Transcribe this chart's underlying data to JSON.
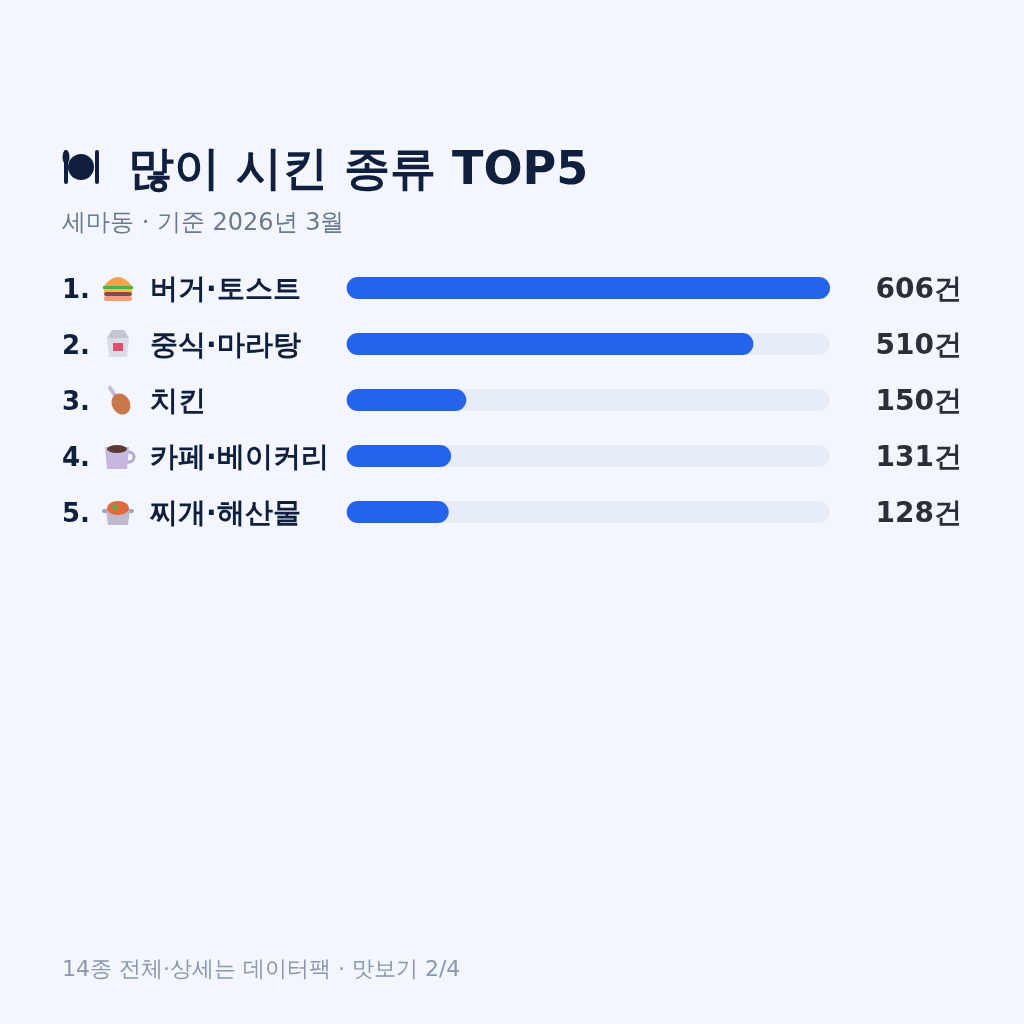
{
  "chart_data": {
    "type": "bar",
    "orientation": "horizontal",
    "title": "많이 시킨 종류 TOP5",
    "subtitle": "세마동 · 기준 2026년 3월",
    "categories": [
      "1. 버거·토스트",
      "2. 중식·마라탕",
      "3. 치킨",
      "4. 카페·베이커리",
      "5. 찌개·해산물"
    ],
    "values": [
      606,
      510,
      150,
      131,
      128
    ],
    "value_labels": [
      "606건",
      "510건",
      "150건",
      "131건",
      "128건"
    ],
    "color": "#2563eb",
    "xlim": [
      0,
      606
    ],
    "annotations": [
      "14종 전체·상세는 데이터팩 · 맛보기 2/4"
    ]
  }
}
